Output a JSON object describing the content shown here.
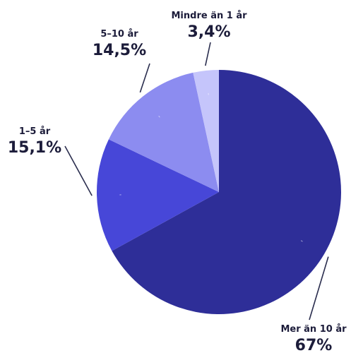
{
  "chart_data": {
    "type": "pie",
    "title": "",
    "start_angle_deg": 0,
    "direction": "clockwise",
    "slices": [
      {
        "label": "Mer än 10 år",
        "value": 67,
        "value_text": "67%",
        "color": "#2e2e98"
      },
      {
        "label": "1–5 år",
        "value": 15.1,
        "value_text": "15,1%",
        "color": "#4747d8"
      },
      {
        "label": "5–10 år",
        "value": 14.5,
        "value_text": "14,5%",
        "color": "#8c8cf0"
      },
      {
        "label": "Mindre än 1 år",
        "value": 3.4,
        "value_text": "3,4%",
        "color": "#c5c5fb"
      }
    ]
  }
}
